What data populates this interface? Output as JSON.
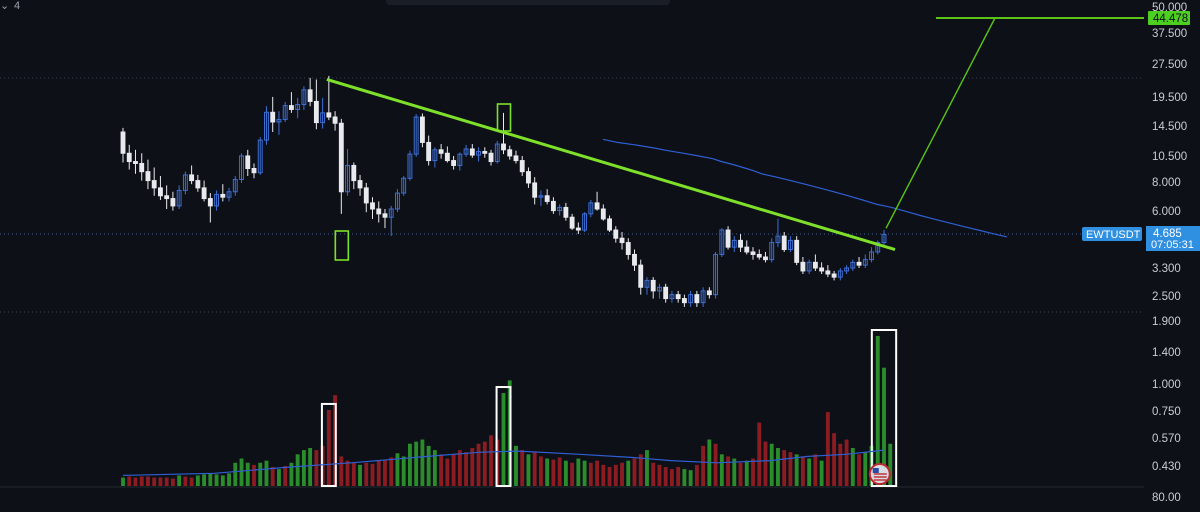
{
  "header": {
    "chevron_icon": "chevron-down-icon",
    "label": "4"
  },
  "colors": {
    "up": "#2a8c2a",
    "down": "#8a1c22",
    "candle_up": "#3d6fd6",
    "candle_down": "#e8eaee",
    "trendline": "#7ee02a",
    "target_line": "#59c317",
    "ma": "#2f5fd3",
    "price_badge": "#2f8fe0",
    "target_badge": "#4ccf21",
    "grid": "#3a3f4a",
    "bg": "#0d1017"
  },
  "price_scale": {
    "ticks": [
      "50.000",
      "37.500",
      "27.500",
      "19.500",
      "14.500",
      "10.500",
      "8.000",
      "6.000",
      "4.685",
      "3.300",
      "2.500",
      "1.900"
    ],
    "target_label": "44.478",
    "current_price": "4.685",
    "countdown": "07:05:31",
    "symbol": "EWTUSDT"
  },
  "volume_scale": {
    "ticks": [
      "1.400",
      "1.000",
      "0.750",
      "0.570",
      "0.430",
      "80.00"
    ]
  },
  "chart_data": [
    {
      "type": "candlestick",
      "symbol": "EWTUSDT",
      "scale": "log",
      "ylim": [
        1.9,
        50.0
      ],
      "last": 4.685,
      "target": 44.478,
      "candles": [
        [
          13.6,
          14.2,
          9.9,
          10.9
        ],
        [
          10.9,
          11.9,
          9.2,
          10.0
        ],
        [
          10.0,
          11.3,
          8.8,
          9.8
        ],
        [
          9.8,
          10.9,
          8.2,
          9.0
        ],
        [
          9.0,
          10.2,
          7.5,
          8.2
        ],
        [
          8.2,
          9.4,
          7.0,
          7.6
        ],
        [
          7.6,
          8.6,
          6.7,
          7.0
        ],
        [
          7.0,
          7.8,
          6.1,
          6.8
        ],
        [
          6.8,
          7.3,
          6.0,
          6.3
        ],
        [
          6.3,
          7.8,
          6.1,
          7.4
        ],
        [
          7.4,
          9.0,
          7.1,
          8.7
        ],
        [
          8.7,
          9.6,
          7.9,
          8.2
        ],
        [
          8.2,
          8.7,
          7.3,
          7.6
        ],
        [
          7.6,
          8.2,
          6.6,
          6.8
        ],
        [
          6.8,
          7.2,
          5.3,
          6.3
        ],
        [
          6.3,
          7.4,
          6.0,
          7.1
        ],
        [
          7.1,
          7.9,
          6.6,
          6.9
        ],
        [
          6.9,
          7.6,
          6.6,
          7.3
        ],
        [
          7.3,
          8.6,
          7.0,
          8.3
        ],
        [
          8.3,
          10.9,
          8.0,
          10.6
        ],
        [
          10.6,
          11.3,
          8.6,
          9.3
        ],
        [
          9.3,
          9.8,
          8.4,
          8.9
        ],
        [
          8.9,
          12.9,
          8.7,
          12.5
        ],
        [
          12.5,
          17.8,
          11.9,
          16.7
        ],
        [
          16.7,
          19.6,
          13.6,
          15.1
        ],
        [
          15.1,
          16.9,
          13.2,
          15.5
        ],
        [
          15.5,
          18.6,
          15.1,
          17.9
        ],
        [
          17.9,
          20.6,
          16.6,
          17.2
        ],
        [
          17.2,
          19.4,
          15.7,
          18.1
        ],
        [
          18.1,
          21.9,
          17.1,
          21.1
        ],
        [
          21.1,
          23.9,
          17.8,
          18.7
        ],
        [
          18.7,
          23.5,
          14.0,
          15.0
        ],
        [
          15.0,
          19.4,
          14.1,
          16.6
        ],
        [
          16.6,
          24.4,
          15.4,
          15.9
        ],
        [
          15.9,
          16.9,
          13.8,
          14.9
        ],
        [
          14.9,
          15.6,
          5.8,
          7.3
        ],
        [
          7.3,
          11.4,
          7.0,
          9.6
        ],
        [
          9.6,
          9.9,
          7.5,
          8.2
        ],
        [
          8.2,
          8.7,
          7.0,
          7.6
        ],
        [
          7.6,
          8.0,
          5.9,
          6.5
        ],
        [
          6.5,
          6.9,
          5.5,
          6.1
        ],
        [
          6.1,
          6.6,
          5.3,
          5.8
        ],
        [
          5.8,
          6.1,
          5.0,
          5.6
        ],
        [
          5.6,
          6.3,
          4.6,
          6.1
        ],
        [
          6.1,
          7.5,
          5.9,
          7.2
        ],
        [
          7.2,
          8.6,
          7.0,
          8.4
        ],
        [
          8.4,
          11.2,
          8.2,
          10.8
        ],
        [
          10.8,
          16.4,
          10.5,
          15.9
        ],
        [
          15.9,
          16.5,
          11.6,
          12.2
        ],
        [
          12.2,
          13.1,
          9.6,
          10.1
        ],
        [
          10.1,
          11.6,
          9.4,
          11.3
        ],
        [
          11.3,
          12.0,
          10.3,
          10.9
        ],
        [
          10.9,
          11.7,
          9.9,
          10.1
        ],
        [
          10.1,
          10.6,
          9.2,
          9.6
        ],
        [
          9.6,
          11.0,
          9.1,
          10.8
        ],
        [
          10.8,
          11.9,
          10.5,
          11.4
        ],
        [
          11.4,
          12.0,
          10.4,
          10.7
        ],
        [
          10.7,
          11.6,
          10.0,
          11.1
        ],
        [
          11.1,
          11.6,
          10.4,
          10.9
        ],
        [
          10.9,
          11.3,
          9.6,
          10.0
        ],
        [
          10.0,
          12.4,
          9.8,
          12.0
        ],
        [
          12.0,
          16.6,
          10.8,
          11.3
        ],
        [
          11.3,
          11.8,
          10.2,
          10.6
        ],
        [
          10.6,
          11.2,
          9.8,
          10.1
        ],
        [
          10.1,
          10.6,
          8.6,
          9.0
        ],
        [
          9.0,
          9.4,
          7.6,
          8.0
        ],
        [
          8.0,
          8.5,
          6.4,
          6.9
        ],
        [
          6.9,
          7.4,
          6.3,
          7.0
        ],
        [
          7.0,
          7.5,
          6.4,
          6.6
        ],
        [
          6.6,
          6.9,
          5.8,
          6.0
        ],
        [
          6.0,
          6.4,
          5.7,
          6.2
        ],
        [
          6.2,
          6.5,
          5.4,
          5.6
        ],
        [
          5.6,
          5.8,
          4.9,
          5.0
        ],
        [
          5.0,
          5.3,
          4.7,
          4.9
        ],
        [
          4.9,
          5.9,
          4.8,
          5.8
        ],
        [
          5.8,
          6.7,
          5.6,
          6.5
        ],
        [
          6.5,
          7.3,
          6.0,
          6.1
        ],
        [
          6.1,
          6.4,
          5.4,
          5.5
        ],
        [
          5.5,
          5.7,
          4.8,
          4.9
        ],
        [
          4.9,
          5.1,
          4.3,
          4.5
        ],
        [
          4.5,
          4.8,
          4.0,
          4.3
        ],
        [
          4.3,
          4.5,
          3.6,
          3.8
        ],
        [
          3.8,
          4.0,
          3.2,
          3.4
        ],
        [
          3.4,
          3.6,
          2.5,
          2.7
        ],
        [
          2.7,
          3.0,
          2.5,
          2.9
        ],
        [
          2.9,
          3.0,
          2.4,
          2.6
        ],
        [
          2.6,
          2.8,
          2.4,
          2.7
        ],
        [
          2.7,
          2.8,
          2.3,
          2.4
        ],
        [
          2.4,
          2.6,
          2.3,
          2.5
        ],
        [
          2.5,
          2.6,
          2.3,
          2.4
        ],
        [
          2.4,
          2.5,
          2.2,
          2.3
        ],
        [
          2.3,
          2.6,
          2.2,
          2.5
        ],
        [
          2.5,
          2.6,
          2.2,
          2.3
        ],
        [
          2.3,
          2.7,
          2.2,
          2.6
        ],
        [
          2.6,
          2.7,
          2.4,
          2.5
        ],
        [
          2.5,
          3.9,
          2.4,
          3.8
        ],
        [
          3.8,
          5.0,
          3.7,
          4.9
        ],
        [
          4.9,
          5.1,
          4.0,
          4.1
        ],
        [
          4.1,
          4.6,
          3.9,
          4.4
        ],
        [
          4.4,
          4.7,
          3.9,
          4.1
        ],
        [
          4.1,
          4.4,
          3.8,
          3.9
        ],
        [
          3.9,
          4.1,
          3.6,
          3.8
        ],
        [
          3.8,
          4.0,
          3.6,
          3.7
        ],
        [
          3.7,
          3.9,
          3.5,
          3.6
        ],
        [
          3.6,
          4.5,
          3.5,
          4.3
        ],
        [
          4.3,
          5.5,
          4.1,
          4.6
        ],
        [
          4.6,
          4.8,
          3.9,
          4.0
        ],
        [
          4.0,
          4.6,
          3.9,
          4.4
        ],
        [
          4.4,
          4.6,
          3.4,
          3.5
        ],
        [
          3.5,
          3.7,
          3.1,
          3.2
        ],
        [
          3.2,
          3.6,
          3.1,
          3.5
        ],
        [
          3.5,
          3.8,
          3.2,
          3.3
        ],
        [
          3.3,
          3.5,
          3.1,
          3.2
        ],
        [
          3.2,
          3.4,
          3.0,
          3.1
        ],
        [
          3.1,
          3.2,
          2.9,
          3.0
        ],
        [
          3.0,
          3.3,
          2.9,
          3.2
        ],
        [
          3.2,
          3.4,
          3.1,
          3.3
        ],
        [
          3.3,
          3.6,
          3.2,
          3.5
        ],
        [
          3.5,
          3.7,
          3.3,
          3.4
        ],
        [
          3.4,
          3.8,
          3.3,
          3.6
        ],
        [
          3.6,
          4.1,
          3.5,
          3.9
        ],
        [
          3.9,
          4.4,
          3.8,
          4.3
        ],
        [
          4.3,
          4.9,
          4.2,
          4.685
        ]
      ],
      "ma": [
        [
          13.0,
          12.6
        ],
        [
          14.0,
          12.2
        ],
        [
          15.2,
          11.9
        ],
        [
          16.6,
          11.5
        ],
        [
          17.5,
          11.2
        ],
        [
          18.6,
          10.9
        ],
        [
          19.6,
          10.6
        ],
        [
          20.6,
          10.3
        ],
        [
          21.2,
          10.0
        ],
        [
          22.0,
          9.7
        ],
        [
          22.7,
          9.4
        ],
        [
          23.4,
          9.1
        ],
        [
          24.0,
          8.8
        ],
        [
          25.0,
          8.5
        ],
        [
          26.0,
          8.2
        ],
        [
          27.0,
          7.9
        ],
        [
          28.0,
          7.6
        ],
        [
          29.0,
          7.3
        ],
        [
          30.0,
          7.0
        ],
        [
          31.0,
          6.7
        ],
        [
          32.0,
          6.4
        ],
        [
          33.0,
          6.2
        ],
        [
          34.0,
          5.95
        ],
        [
          35.0,
          5.7
        ],
        [
          36.0,
          5.48
        ],
        [
          37.0,
          5.28
        ],
        [
          38.0,
          5.08
        ],
        [
          39.0,
          4.9
        ],
        [
          40.0,
          4.72
        ],
        [
          41.0,
          4.56
        ]
      ],
      "trendline": [
        [
          0.0,
          23.5
        ],
        [
          1.0,
          4.0
        ]
      ],
      "projection": [
        [
          0.0,
          4.685
        ],
        [
          1.0,
          44.478
        ]
      ],
      "markers": [
        "bar-35-low",
        "bar-61-high"
      ]
    },
    {
      "type": "bar",
      "name": "Volume",
      "values": [
        [
          8,
          1
        ],
        [
          9,
          0
        ],
        [
          8,
          0
        ],
        [
          9,
          0
        ],
        [
          9,
          0
        ],
        [
          8,
          0
        ],
        [
          8,
          0
        ],
        [
          8,
          0
        ],
        [
          7,
          0
        ],
        [
          10,
          1
        ],
        [
          9,
          0
        ],
        [
          8,
          0
        ],
        [
          10,
          1
        ],
        [
          11,
          1
        ],
        [
          12,
          1
        ],
        [
          11,
          1
        ],
        [
          10,
          1
        ],
        [
          12,
          1
        ],
        [
          22,
          1
        ],
        [
          26,
          1
        ],
        [
          22,
          1
        ],
        [
          20,
          0
        ],
        [
          22,
          1
        ],
        [
          24,
          1
        ],
        [
          18,
          0
        ],
        [
          16,
          1
        ],
        [
          19,
          0
        ],
        [
          22,
          1
        ],
        [
          30,
          1
        ],
        [
          34,
          1
        ],
        [
          36,
          1
        ],
        [
          34,
          0
        ],
        [
          38,
          0
        ],
        [
          72,
          0
        ],
        [
          86,
          0
        ],
        [
          28,
          0
        ],
        [
          24,
          0
        ],
        [
          22,
          0
        ],
        [
          20,
          1
        ],
        [
          22,
          0
        ],
        [
          21,
          0
        ],
        [
          24,
          0
        ],
        [
          25,
          0
        ],
        [
          27,
          0
        ],
        [
          31,
          1
        ],
        [
          28,
          1
        ],
        [
          40,
          1
        ],
        [
          42,
          1
        ],
        [
          44,
          1
        ],
        [
          38,
          1
        ],
        [
          34,
          1
        ],
        [
          30,
          0
        ],
        [
          26,
          0
        ],
        [
          30,
          0
        ],
        [
          34,
          0
        ],
        [
          32,
          0
        ],
        [
          36,
          0
        ],
        [
          40,
          0
        ],
        [
          42,
          0
        ],
        [
          48,
          0
        ],
        [
          44,
          0
        ],
        [
          88,
          1
        ],
        [
          100,
          1
        ],
        [
          38,
          1
        ],
        [
          34,
          0
        ],
        [
          30,
          1
        ],
        [
          32,
          0
        ],
        [
          28,
          0
        ],
        [
          26,
          1
        ],
        [
          25,
          0
        ],
        [
          27,
          0
        ],
        [
          24,
          1
        ],
        [
          22,
          0
        ],
        [
          26,
          1
        ],
        [
          24,
          1
        ],
        [
          22,
          0
        ],
        [
          24,
          0
        ],
        [
          20,
          0
        ],
        [
          18,
          0
        ],
        [
          20,
          0
        ],
        [
          22,
          0
        ],
        [
          24,
          1
        ],
        [
          26,
          0
        ],
        [
          30,
          0
        ],
        [
          34,
          1
        ],
        [
          22,
          0
        ],
        [
          20,
          0
        ],
        [
          18,
          0
        ],
        [
          16,
          0
        ],
        [
          18,
          0
        ],
        [
          16,
          1
        ],
        [
          15,
          1
        ],
        [
          20,
          0
        ],
        [
          38,
          0
        ],
        [
          44,
          1
        ],
        [
          40,
          0
        ],
        [
          30,
          1
        ],
        [
          28,
          0
        ],
        [
          26,
          1
        ],
        [
          22,
          0
        ],
        [
          24,
          1
        ],
        [
          26,
          0
        ],
        [
          60,
          0
        ],
        [
          42,
          0
        ],
        [
          40,
          1
        ],
        [
          36,
          1
        ],
        [
          34,
          0
        ],
        [
          32,
          0
        ],
        [
          30,
          1
        ],
        [
          28,
          0
        ],
        [
          26,
          1
        ],
        [
          30,
          0
        ],
        [
          24,
          1
        ],
        [
          70,
          0
        ],
        [
          50,
          0
        ],
        [
          40,
          0
        ],
        [
          44,
          0
        ],
        [
          36,
          1
        ],
        [
          30,
          0
        ],
        [
          32,
          1
        ],
        [
          38,
          1
        ],
        [
          142,
          1
        ],
        [
          112,
          1
        ],
        [
          40,
          1
        ]
      ],
      "ma": [
        [
          0.0,
          10
        ],
        [
          0.12,
          12
        ],
        [
          0.22,
          18
        ],
        [
          0.3,
          22
        ],
        [
          0.4,
          28
        ],
        [
          0.47,
          32
        ],
        [
          0.52,
          33
        ],
        [
          0.6,
          30
        ],
        [
          0.67,
          27
        ],
        [
          0.72,
          24
        ],
        [
          0.78,
          22
        ],
        [
          0.85,
          24
        ],
        [
          0.9,
          28
        ],
        [
          0.95,
          30
        ],
        [
          1.0,
          34
        ]
      ],
      "highlighted_bars": [
        33,
        61,
        121
      ]
    }
  ]
}
